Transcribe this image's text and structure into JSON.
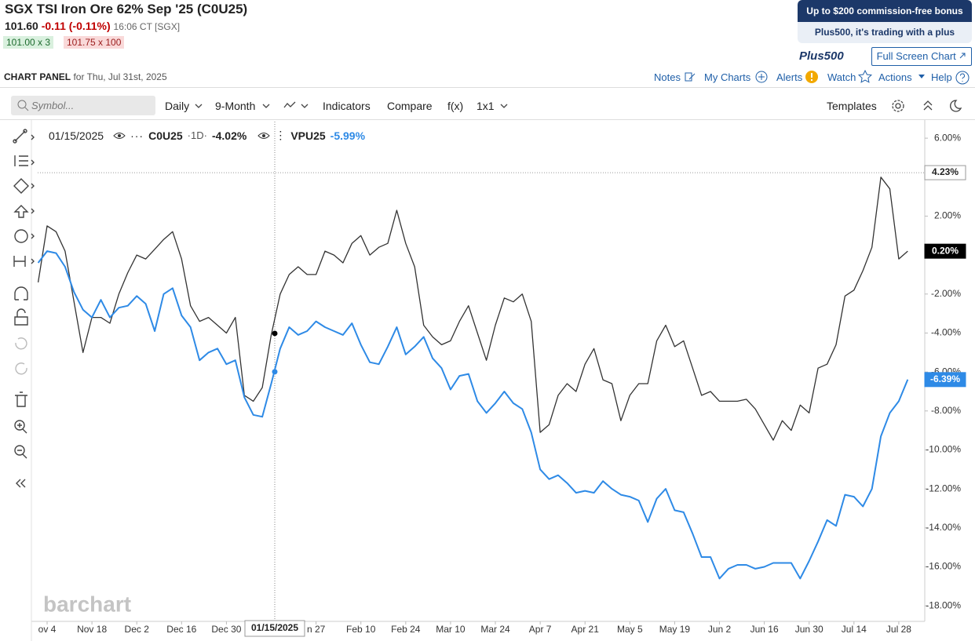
{
  "header": {
    "title": "SGX TSI Iron Ore 62% Sep '25 (C0U25)",
    "last": "101.60",
    "change": "-0.11 (-0.11%)",
    "time": "16:06 CT [SGX]",
    "bid": "101.00 x 3",
    "ask": "101.75 x 100"
  },
  "ad": {
    "headline": "Up to $200 commission-free bonus",
    "tagline": "Plus500, it's trading with a plus",
    "logo": "Plus500"
  },
  "fullscreen": "Full Screen Chart",
  "panel": {
    "title": "CHART PANEL",
    "date": "for Thu, Jul 31st, 2025",
    "links": [
      "Notes",
      "My Charts",
      "Alerts",
      "Watch",
      "Actions",
      "Help"
    ]
  },
  "toolbar": {
    "symbol_placeholder": "Symbol...",
    "items": [
      "Daily",
      "9-Month",
      "Indicators",
      "Compare",
      "f(x)",
      "1x1"
    ],
    "templates": "Templates"
  },
  "watermark": "barchart",
  "chart_data": {
    "type": "line",
    "categories": [
      null,
      "ov 4",
      null,
      null,
      null,
      null,
      "Nov 18",
      null,
      null,
      null,
      null,
      "Dec 2",
      null,
      null,
      null,
      null,
      "Dec 16",
      null,
      null,
      null,
      null,
      "Dec 30",
      null,
      null,
      null,
      null,
      null,
      null,
      null,
      null,
      null,
      "n 27",
      null,
      null,
      null,
      null,
      "Feb 10",
      null,
      null,
      null,
      null,
      "Feb 24",
      null,
      null,
      null,
      null,
      "Mar 10",
      null,
      null,
      null,
      null,
      "Mar 24",
      null,
      null,
      null,
      null,
      "Apr 7",
      null,
      null,
      null,
      null,
      "Apr 21",
      null,
      null,
      null,
      null,
      "May 5",
      null,
      null,
      null,
      null,
      "May 19",
      null,
      null,
      null,
      null,
      "Jun 2",
      null,
      null,
      null,
      null,
      "Jun 16",
      null,
      null,
      null,
      null,
      "Jun 30",
      null,
      null,
      null,
      null,
      "Jul 14",
      null,
      null,
      null,
      null,
      "Jul 28",
      null
    ],
    "series": [
      {
        "name": "C0U25",
        "color": "#333333",
        "values": [
          -1.4,
          1.5,
          1.2,
          0.2,
          -2.4,
          -5.0,
          -3.2,
          -3.2,
          -3.5,
          -2.0,
          -0.9,
          0.0,
          -0.2,
          0.3,
          0.8,
          1.2,
          -0.2,
          -2.6,
          -3.4,
          -3.2,
          -3.6,
          -4.0,
          -3.2,
          -7.2,
          -7.5,
          -6.8,
          -4.1,
          -2.0,
          -1.0,
          -0.6,
          -1.0,
          -1.0,
          0.2,
          0.0,
          -0.4,
          0.6,
          1.0,
          0.0,
          0.4,
          0.6,
          2.3,
          0.6,
          -0.6,
          -3.6,
          -4.2,
          -4.6,
          -4.4,
          -3.4,
          -2.6,
          -4.0,
          -5.4,
          -3.6,
          -2.2,
          -2.4,
          -2.0,
          -3.4,
          -9.1,
          -8.7,
          -7.2,
          -6.6,
          -7.0,
          -5.6,
          -4.8,
          -6.4,
          -6.6,
          -8.5,
          -7.2,
          -6.6,
          -6.6,
          -4.4,
          -3.6,
          -4.7,
          -4.4,
          -5.8,
          -7.2,
          -7.0,
          -7.5,
          -7.5,
          -7.5,
          -7.4,
          -7.9,
          -8.7,
          -9.5,
          -8.5,
          -9.0,
          -7.7,
          -8.1,
          -5.8,
          -5.6,
          -4.6,
          -2.1,
          -1.8,
          -0.8,
          0.4,
          4.0,
          3.4,
          -0.2,
          0.2
        ]
      },
      {
        "name": "VPU25",
        "color": "#2e8ae6",
        "values": [
          -0.4,
          0.2,
          0.1,
          -0.6,
          -1.9,
          -2.8,
          -3.2,
          -2.3,
          -3.2,
          -2.7,
          -2.6,
          -2.1,
          -2.5,
          -3.9,
          -2.0,
          -1.7,
          -3.1,
          -3.7,
          -5.4,
          -5.0,
          -4.8,
          -5.6,
          -5.4,
          -7.3,
          -8.2,
          -8.3,
          -6.6,
          -4.8,
          -3.7,
          -4.1,
          -3.9,
          -3.4,
          -3.7,
          -3.9,
          -4.1,
          -3.5,
          -4.6,
          -5.5,
          -5.6,
          -4.7,
          -3.7,
          -5.1,
          -4.7,
          -4.2,
          -5.3,
          -5.8,
          -6.9,
          -6.2,
          -6.1,
          -7.5,
          -8.1,
          -7.6,
          -7.0,
          -7.6,
          -7.9,
          -9.1,
          -11.0,
          -11.5,
          -11.3,
          -11.7,
          -12.2,
          -12.1,
          -12.2,
          -11.6,
          -12.0,
          -12.3,
          -12.4,
          -12.6,
          -13.7,
          -12.5,
          -12.0,
          -13.1,
          -13.2,
          -14.3,
          -15.5,
          -15.5,
          -16.6,
          -16.1,
          -15.9,
          -15.9,
          -16.1,
          -16.0,
          -15.8,
          -15.8,
          -15.8,
          -16.6,
          -15.7,
          -14.7,
          -13.6,
          -13.9,
          -12.3,
          -12.4,
          -12.9,
          -12.0,
          -9.3,
          -8.1,
          -7.5,
          -6.39
        ]
      }
    ],
    "interval": "·1D·",
    "ylim": [
      -18.8,
      6.85
    ],
    "yticks": [
      {
        "value": 6,
        "label": "6.00%"
      },
      {
        "value": 2,
        "label": "2.00%"
      },
      {
        "value": -2,
        "label": "-2.00%"
      },
      {
        "value": -4,
        "label": "-4.00%"
      },
      {
        "value": -6,
        "label": "-6.00%"
      },
      {
        "value": -8,
        "label": "-8.00%"
      },
      {
        "value": -10,
        "label": "-10.00%"
      },
      {
        "value": -12,
        "label": "-12.00%"
      },
      {
        "value": -14,
        "label": "-14.00%"
      },
      {
        "value": -16,
        "label": "-16.00%"
      },
      {
        "value": -18,
        "label": "-18.00%"
      }
    ],
    "crosshair": {
      "label": "01/15/2025",
      "values": [
        -4.02,
        -5.99
      ],
      "value_labels": [
        "-4.02%",
        "-5.99%"
      ]
    },
    "price_labels": [
      {
        "value": 4.23,
        "label": "4.23%",
        "color": "#ffffff"
      },
      {
        "value": 0.2,
        "label": "0.20%",
        "color": "#000000"
      },
      {
        "value": -6.39,
        "label": "-6.39%",
        "color": "#2e8ae6"
      }
    ]
  }
}
